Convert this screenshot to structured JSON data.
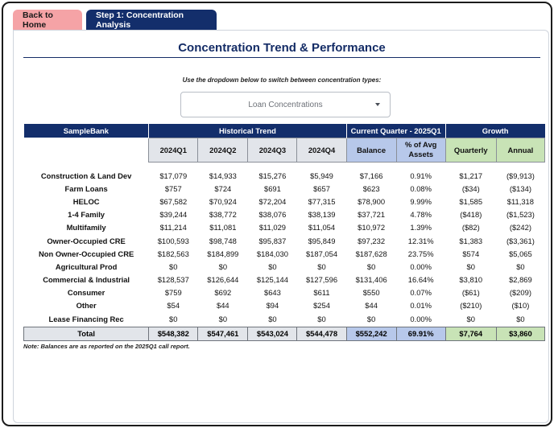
{
  "tabs": {
    "home": "Back to Home",
    "step1": "Step 1: Concentration Analysis"
  },
  "page": {
    "title": "Concentration Trend & Performance",
    "instruction": "Use the dropdown below to switch between concentration types:",
    "dropdown_value": "Loan Concentrations",
    "note": "Note: Balances are as reported on the 2025Q1 call report."
  },
  "table": {
    "bank_name": "SampleBank",
    "groups": {
      "historical": "Historical Trend",
      "current": "Current Quarter - 2025Q1",
      "growth": "Growth"
    },
    "columns": [
      "2024Q1",
      "2024Q2",
      "2024Q3",
      "2024Q4",
      "Balance",
      "% of Avg Assets",
      "Quarterly",
      "Annual"
    ],
    "rows": [
      {
        "name": "Construction & Land Dev",
        "values": [
          "$17,079",
          "$14,933",
          "$15,276",
          "$5,949",
          "$7,166",
          "0.91%",
          "$1,217",
          "($9,913)"
        ]
      },
      {
        "name": "Farm Loans",
        "values": [
          "$757",
          "$724",
          "$691",
          "$657",
          "$623",
          "0.08%",
          "($34)",
          "($134)"
        ]
      },
      {
        "name": "HELOC",
        "values": [
          "$67,582",
          "$70,924",
          "$72,204",
          "$77,315",
          "$78,900",
          "9.99%",
          "$1,585",
          "$11,318"
        ]
      },
      {
        "name": "1-4 Family",
        "values": [
          "$39,244",
          "$38,772",
          "$38,076",
          "$38,139",
          "$37,721",
          "4.78%",
          "($418)",
          "($1,523)"
        ]
      },
      {
        "name": "Multifamily",
        "values": [
          "$11,214",
          "$11,081",
          "$11,029",
          "$11,054",
          "$10,972",
          "1.39%",
          "($82)",
          "($242)"
        ]
      },
      {
        "name": "Owner-Occupied CRE",
        "values": [
          "$100,593",
          "$98,748",
          "$95,837",
          "$95,849",
          "$97,232",
          "12.31%",
          "$1,383",
          "($3,361)"
        ]
      },
      {
        "name": "Non Owner-Occupied CRE",
        "values": [
          "$182,563",
          "$184,899",
          "$184,030",
          "$187,054",
          "$187,628",
          "23.75%",
          "$574",
          "$5,065"
        ]
      },
      {
        "name": "Agricultural Prod",
        "values": [
          "$0",
          "$0",
          "$0",
          "$0",
          "$0",
          "0.00%",
          "$0",
          "$0"
        ]
      },
      {
        "name": "Commercial & Industrial",
        "values": [
          "$128,537",
          "$126,644",
          "$125,144",
          "$127,596",
          "$131,406",
          "16.64%",
          "$3,810",
          "$2,869"
        ]
      },
      {
        "name": "Consumer",
        "values": [
          "$759",
          "$692",
          "$643",
          "$611",
          "$550",
          "0.07%",
          "($61)",
          "($209)"
        ]
      },
      {
        "name": "Other",
        "values": [
          "$54",
          "$44",
          "$94",
          "$254",
          "$44",
          "0.01%",
          "($210)",
          "($10)"
        ]
      },
      {
        "name": "Lease Financing Rec",
        "values": [
          "$0",
          "$0",
          "$0",
          "$0",
          "$0",
          "0.00%",
          "$0",
          "$0"
        ]
      }
    ],
    "total": {
      "name": "Total",
      "values": [
        "$548,382",
        "$547,461",
        "$543,024",
        "$544,478",
        "$552,242",
        "69.91%",
        "$7,764",
        "$3,860"
      ]
    }
  },
  "colors": {
    "navy": "#132e6b",
    "home_tab": "#f5a3a6",
    "hist_fill": "#e2e5ea",
    "current_fill": "#b7c8ea",
    "growth_fill": "#c8e3b6",
    "negative": "#e0201c"
  },
  "icons": {
    "dropdown": "chevron-down-icon"
  }
}
